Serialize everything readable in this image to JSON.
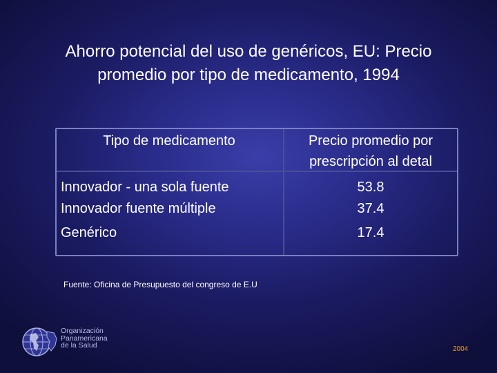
{
  "slide": {
    "title_line1": "Ahorro potencial del uso de genéricos, EU: Precio",
    "title_line2": "promedio por tipo de medicamento, 1994"
  },
  "table": {
    "headers": {
      "type": "Tipo de medicamento",
      "price_line1": "Precio promedio por",
      "price_line2": "prescripción al detal"
    },
    "rows": [
      {
        "type": "Innovador - una sola fuente",
        "price": "53.8"
      },
      {
        "type": "Innovador fuente múltiple",
        "price": "37.4"
      },
      {
        "type": "Genérico",
        "price": "17.4"
      }
    ]
  },
  "source": "Fuente: Oficina de Presupuesto del congreso de E.U",
  "organization": {
    "line1": "Organización",
    "line2": "Panamericana",
    "line3": "de la Salud",
    "logo_icon": "paho-globe-logo-icon"
  },
  "year": "2004",
  "colors": {
    "background": "#1b1b63",
    "table_border": "#7b7fc2",
    "year_text": "#e8a030"
  }
}
